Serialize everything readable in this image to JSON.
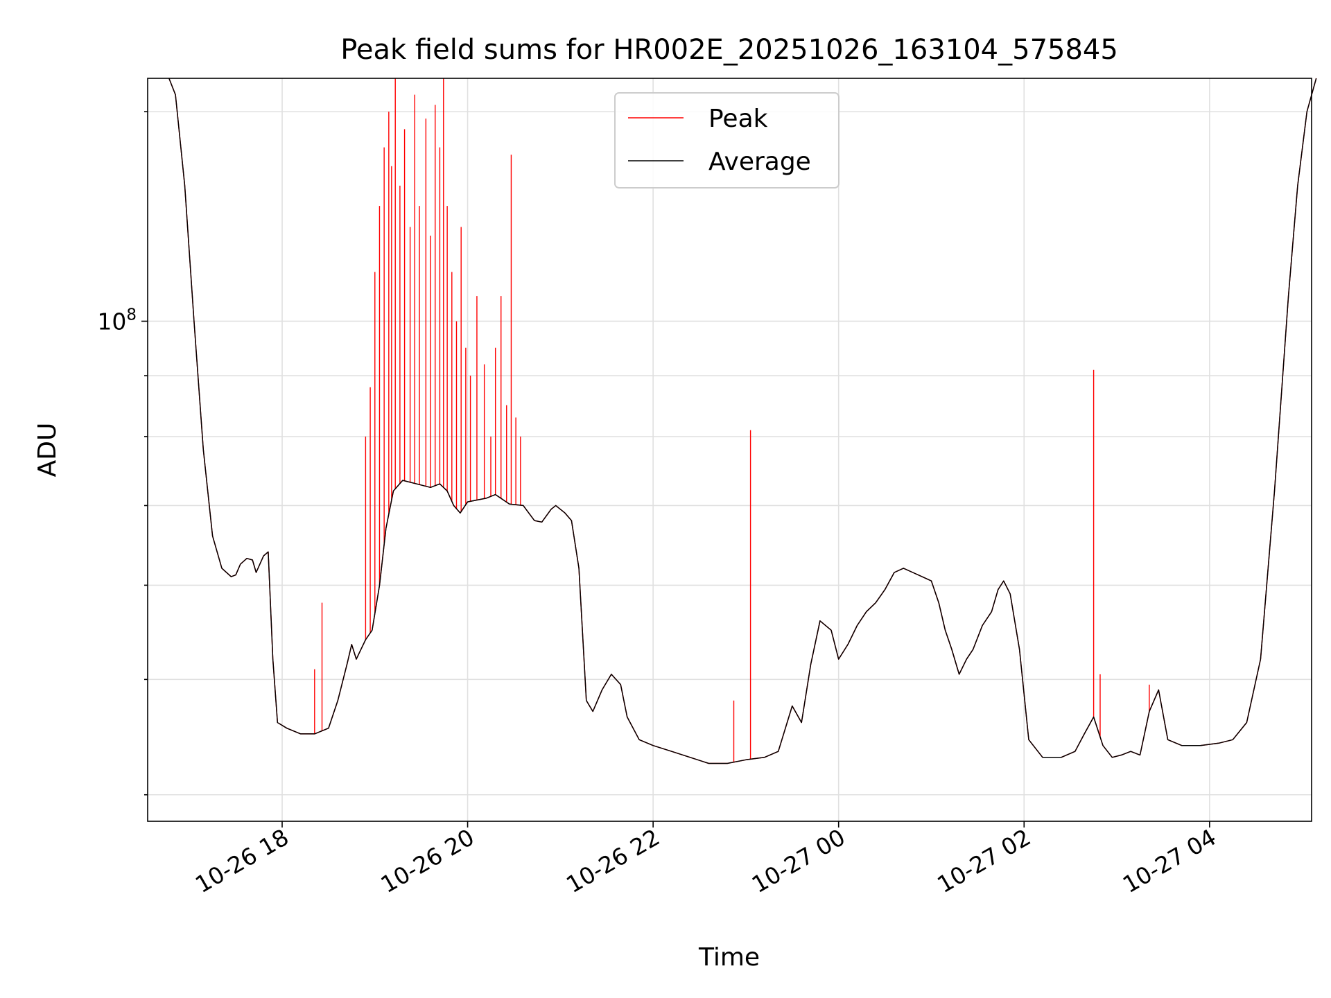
{
  "chart_data": {
    "type": "line",
    "title": "Peak field sums for HR002E_20251026_163104_575845",
    "xlabel": "Time",
    "ylabel": "ADU",
    "yscale": "log",
    "grid": true,
    "ylim": [
      38000000,
      160000000
    ],
    "xlim_hours": [
      16.55,
      5.1
    ],
    "x_ticks": [
      {
        "label": "10-26 18",
        "hour": 18
      },
      {
        "label": "10-26 20",
        "hour": 20
      },
      {
        "label": "10-26 22",
        "hour": 22
      },
      {
        "label": "10-27 00",
        "hour": 24
      },
      {
        "label": "10-27 02",
        "hour": 26
      },
      {
        "label": "10-27 04",
        "hour": 28
      }
    ],
    "y_major_ticks": [
      {
        "value": 100000000,
        "base": "10",
        "exp": "8"
      }
    ],
    "y_minor_ticks": [
      40000000,
      50000000,
      60000000,
      70000000,
      80000000,
      90000000,
      150000000
    ],
    "legend": {
      "location": "upper center",
      "entries": [
        {
          "label": "Peak",
          "color": "#ff0000"
        },
        {
          "label": "Average",
          "color": "#000000"
        }
      ]
    },
    "series": [
      {
        "name": "Average",
        "color": "#000000",
        "points": [
          [
            16.78,
            160000000
          ],
          [
            16.85,
            155000000
          ],
          [
            16.95,
            130000000
          ],
          [
            17.05,
            100000000
          ],
          [
            17.15,
            78000000
          ],
          [
            17.25,
            66000000
          ],
          [
            17.35,
            62000000
          ],
          [
            17.45,
            61000000
          ],
          [
            17.5,
            61200000
          ],
          [
            17.55,
            62500000
          ],
          [
            17.62,
            63200000
          ],
          [
            17.68,
            63000000
          ],
          [
            17.72,
            61500000
          ],
          [
            17.8,
            63500000
          ],
          [
            17.85,
            64000000
          ],
          [
            17.9,
            52000000
          ],
          [
            17.95,
            46000000
          ],
          [
            18.05,
            45500000
          ],
          [
            18.2,
            45000000
          ],
          [
            18.35,
            45000000
          ],
          [
            18.5,
            45500000
          ],
          [
            18.6,
            48000000
          ],
          [
            18.7,
            51500000
          ],
          [
            18.75,
            53500000
          ],
          [
            18.8,
            52000000
          ],
          [
            18.85,
            53000000
          ],
          [
            18.9,
            54000000
          ],
          [
            18.97,
            55000000
          ],
          [
            19.05,
            60000000
          ],
          [
            19.12,
            67000000
          ],
          [
            19.2,
            72000000
          ],
          [
            19.3,
            73500000
          ],
          [
            19.45,
            73000000
          ],
          [
            19.6,
            72500000
          ],
          [
            19.7,
            73000000
          ],
          [
            19.78,
            72000000
          ],
          [
            19.85,
            70000000
          ],
          [
            19.92,
            69000000
          ],
          [
            20.0,
            70500000
          ],
          [
            20.2,
            71000000
          ],
          [
            20.3,
            71500000
          ],
          [
            20.45,
            70200000
          ],
          [
            20.6,
            70000000
          ],
          [
            20.72,
            68000000
          ],
          [
            20.8,
            67800000
          ],
          [
            20.9,
            69500000
          ],
          [
            20.95,
            70000000
          ],
          [
            21.05,
            69000000
          ],
          [
            21.12,
            68000000
          ],
          [
            21.2,
            62000000
          ],
          [
            21.28,
            48000000
          ],
          [
            21.35,
            47000000
          ],
          [
            21.45,
            49000000
          ],
          [
            21.55,
            50500000
          ],
          [
            21.65,
            49500000
          ],
          [
            21.72,
            46500000
          ],
          [
            21.85,
            44500000
          ],
          [
            22.0,
            44000000
          ],
          [
            22.2,
            43500000
          ],
          [
            22.4,
            43000000
          ],
          [
            22.6,
            42500000
          ],
          [
            22.8,
            42500000
          ],
          [
            23.0,
            42800000
          ],
          [
            23.2,
            43000000
          ],
          [
            23.35,
            43500000
          ],
          [
            23.5,
            47500000
          ],
          [
            23.6,
            46000000
          ],
          [
            23.7,
            51500000
          ],
          [
            23.8,
            56000000
          ],
          [
            23.92,
            55000000
          ],
          [
            24.0,
            52000000
          ],
          [
            24.1,
            53500000
          ],
          [
            24.2,
            55500000
          ],
          [
            24.3,
            57000000
          ],
          [
            24.4,
            58000000
          ],
          [
            24.5,
            59500000
          ],
          [
            24.6,
            61500000
          ],
          [
            24.7,
            62000000
          ],
          [
            24.8,
            61500000
          ],
          [
            24.9,
            61000000
          ],
          [
            25.0,
            60500000
          ],
          [
            25.08,
            58000000
          ],
          [
            25.15,
            55000000
          ],
          [
            25.22,
            53000000
          ],
          [
            25.3,
            50500000
          ],
          [
            25.38,
            52000000
          ],
          [
            25.45,
            53000000
          ],
          [
            25.55,
            55500000
          ],
          [
            25.65,
            57000000
          ],
          [
            25.72,
            59500000
          ],
          [
            25.78,
            60500000
          ],
          [
            25.85,
            59000000
          ],
          [
            25.95,
            53000000
          ],
          [
            26.05,
            44500000
          ],
          [
            26.2,
            43000000
          ],
          [
            26.4,
            43000000
          ],
          [
            26.55,
            43500000
          ],
          [
            26.65,
            45000000
          ],
          [
            26.75,
            46500000
          ],
          [
            26.85,
            44000000
          ],
          [
            26.95,
            43000000
          ],
          [
            27.05,
            43200000
          ],
          [
            27.15,
            43500000
          ],
          [
            27.25,
            43200000
          ],
          [
            27.35,
            47000000
          ],
          [
            27.45,
            49000000
          ],
          [
            27.55,
            44500000
          ],
          [
            27.7,
            44000000
          ],
          [
            27.9,
            44000000
          ],
          [
            28.1,
            44200000
          ],
          [
            28.25,
            44500000
          ],
          [
            28.4,
            46000000
          ],
          [
            28.55,
            52000000
          ],
          [
            28.7,
            72000000
          ],
          [
            28.85,
            105000000
          ],
          [
            28.95,
            130000000
          ],
          [
            29.05,
            150000000
          ],
          [
            29.15,
            160000000
          ]
        ],
        "spikes": []
      },
      {
        "name": "Peak",
        "color": "#ff0000",
        "points": [
          [
            16.78,
            160000000
          ],
          [
            16.85,
            155000000
          ],
          [
            16.95,
            130000000
          ],
          [
            17.05,
            100000000
          ],
          [
            17.15,
            78000000
          ],
          [
            17.25,
            66000000
          ],
          [
            17.35,
            62000000
          ],
          [
            17.45,
            61000000
          ],
          [
            17.5,
            61200000
          ],
          [
            17.55,
            62500000
          ],
          [
            17.62,
            63200000
          ],
          [
            17.68,
            63000000
          ],
          [
            17.72,
            61500000
          ],
          [
            17.8,
            63500000
          ],
          [
            17.85,
            64000000
          ],
          [
            17.9,
            52000000
          ],
          [
            17.95,
            46000000
          ],
          [
            18.05,
            45500000
          ],
          [
            18.2,
            45000000
          ],
          [
            18.35,
            45000000
          ],
          [
            18.5,
            45500000
          ],
          [
            18.6,
            48000000
          ],
          [
            18.7,
            51500000
          ],
          [
            18.75,
            53500000
          ],
          [
            18.8,
            52000000
          ],
          [
            18.85,
            53000000
          ],
          [
            18.9,
            54000000
          ],
          [
            18.97,
            55000000
          ],
          [
            19.05,
            60000000
          ],
          [
            19.12,
            67000000
          ],
          [
            19.2,
            72000000
          ],
          [
            19.3,
            73500000
          ],
          [
            19.45,
            73000000
          ],
          [
            19.6,
            72500000
          ],
          [
            19.7,
            73000000
          ],
          [
            19.78,
            72000000
          ],
          [
            19.85,
            70000000
          ],
          [
            19.92,
            69000000
          ],
          [
            20.0,
            70500000
          ],
          [
            20.2,
            71000000
          ],
          [
            20.3,
            71500000
          ],
          [
            20.45,
            70200000
          ],
          [
            20.6,
            70000000
          ],
          [
            20.72,
            68000000
          ],
          [
            20.8,
            67800000
          ],
          [
            20.9,
            69500000
          ],
          [
            20.95,
            70000000
          ],
          [
            21.05,
            69000000
          ],
          [
            21.12,
            68000000
          ],
          [
            21.2,
            62000000
          ],
          [
            21.28,
            48000000
          ],
          [
            21.35,
            47000000
          ],
          [
            21.45,
            49000000
          ],
          [
            21.55,
            50500000
          ],
          [
            21.65,
            49500000
          ],
          [
            21.72,
            46500000
          ],
          [
            21.85,
            44500000
          ],
          [
            22.0,
            44000000
          ],
          [
            22.2,
            43500000
          ],
          [
            22.4,
            43000000
          ],
          [
            22.6,
            42500000
          ],
          [
            22.8,
            42500000
          ],
          [
            23.0,
            42800000
          ],
          [
            23.2,
            43000000
          ],
          [
            23.35,
            43500000
          ],
          [
            23.5,
            47500000
          ],
          [
            23.6,
            46000000
          ],
          [
            23.7,
            51500000
          ],
          [
            23.8,
            56000000
          ],
          [
            23.92,
            55000000
          ],
          [
            24.0,
            52000000
          ],
          [
            24.1,
            53500000
          ],
          [
            24.2,
            55500000
          ],
          [
            24.3,
            57000000
          ],
          [
            24.4,
            58000000
          ],
          [
            24.5,
            59500000
          ],
          [
            24.6,
            61500000
          ],
          [
            24.7,
            62000000
          ],
          [
            24.8,
            61500000
          ],
          [
            24.9,
            61000000
          ],
          [
            25.0,
            60500000
          ],
          [
            25.08,
            58000000
          ],
          [
            25.15,
            55000000
          ],
          [
            25.22,
            53000000
          ],
          [
            25.3,
            50500000
          ],
          [
            25.38,
            52000000
          ],
          [
            25.45,
            53000000
          ],
          [
            25.55,
            55500000
          ],
          [
            25.65,
            57000000
          ],
          [
            25.72,
            59500000
          ],
          [
            25.78,
            60500000
          ],
          [
            25.85,
            59000000
          ],
          [
            25.95,
            53000000
          ],
          [
            26.05,
            44500000
          ],
          [
            26.2,
            43000000
          ],
          [
            26.4,
            43000000
          ],
          [
            26.55,
            43500000
          ],
          [
            26.65,
            45000000
          ],
          [
            26.75,
            46500000
          ],
          [
            26.85,
            44000000
          ],
          [
            26.95,
            43000000
          ],
          [
            27.05,
            43200000
          ],
          [
            27.15,
            43500000
          ],
          [
            27.25,
            43200000
          ],
          [
            27.35,
            47000000
          ],
          [
            27.45,
            49000000
          ],
          [
            27.55,
            44500000
          ],
          [
            27.7,
            44000000
          ],
          [
            27.9,
            44000000
          ],
          [
            28.1,
            44200000
          ],
          [
            28.25,
            44500000
          ],
          [
            28.4,
            46000000
          ],
          [
            28.55,
            52000000
          ],
          [
            28.7,
            72000000
          ],
          [
            28.85,
            105000000
          ],
          [
            28.95,
            130000000
          ],
          [
            29.05,
            150000000
          ],
          [
            29.15,
            160000000
          ]
        ],
        "spikes": [
          [
            18.35,
            51000000
          ],
          [
            18.43,
            58000000
          ],
          [
            18.9,
            80000000
          ],
          [
            18.95,
            88000000
          ],
          [
            19.0,
            110000000
          ],
          [
            19.05,
            125000000
          ],
          [
            19.1,
            140000000
          ],
          [
            19.15,
            150000000
          ],
          [
            19.18,
            135000000
          ],
          [
            19.22,
            160000000
          ],
          [
            19.27,
            130000000
          ],
          [
            19.32,
            145000000
          ],
          [
            19.38,
            120000000
          ],
          [
            19.43,
            155000000
          ],
          [
            19.48,
            125000000
          ],
          [
            19.55,
            148000000
          ],
          [
            19.6,
            118000000
          ],
          [
            19.65,
            152000000
          ],
          [
            19.7,
            140000000
          ],
          [
            19.74,
            160000000
          ],
          [
            19.78,
            125000000
          ],
          [
            19.83,
            110000000
          ],
          [
            19.88,
            100000000
          ],
          [
            19.93,
            120000000
          ],
          [
            19.98,
            95000000
          ],
          [
            20.03,
            90000000
          ],
          [
            20.1,
            105000000
          ],
          [
            20.18,
            92000000
          ],
          [
            20.25,
            80000000
          ],
          [
            20.3,
            95000000
          ],
          [
            20.36,
            105000000
          ],
          [
            20.42,
            85000000
          ],
          [
            20.47,
            138000000
          ],
          [
            20.52,
            83000000
          ],
          [
            20.57,
            80000000
          ],
          [
            22.87,
            48000000
          ],
          [
            23.05,
            81000000
          ],
          [
            26.75,
            91000000
          ],
          [
            26.82,
            50500000
          ],
          [
            27.35,
            49500000
          ]
        ]
      }
    ]
  }
}
